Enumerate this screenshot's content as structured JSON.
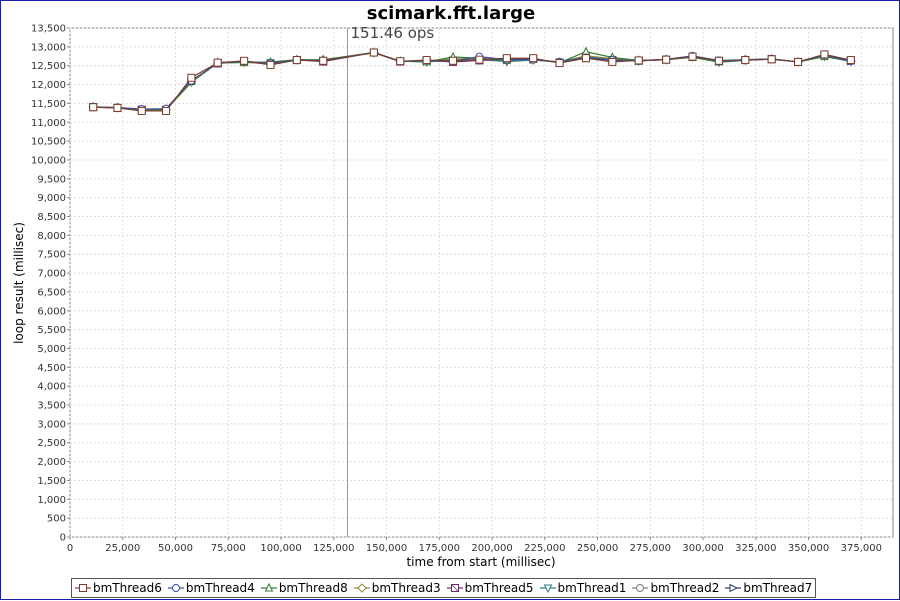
{
  "chart_data": {
    "type": "line",
    "title": "scimark.fft.large",
    "xlabel": "time from start (millisec)",
    "ylabel": "loop result (millisec)",
    "xlim": [
      0,
      390000
    ],
    "ylim": [
      0,
      13500
    ],
    "x_ticks": [
      "0",
      "25,000",
      "50,000",
      "75,000",
      "100,000",
      "125,000",
      "150,000",
      "175,000",
      "200,000",
      "225,000",
      "250,000",
      "275,000",
      "300,000",
      "325,000",
      "350,000",
      "375,000"
    ],
    "y_ticks": [
      "0",
      "500",
      "1,000",
      "1,500",
      "2,000",
      "2,500",
      "3,000",
      "3,500",
      "4,000",
      "4,500",
      "5,000",
      "5,500",
      "6,000",
      "6,500",
      "7,000",
      "7,500",
      "8,000",
      "8,500",
      "9,000",
      "9,500",
      "10,000",
      "10,500",
      "11,000",
      "11,500",
      "12,000",
      "12,500",
      "13,000",
      "13,500"
    ],
    "grid": true,
    "legend_position": "bottom",
    "marker": {
      "x": 131500,
      "label": "151.46 ops"
    },
    "x": [
      11000,
      22500,
      34000,
      45500,
      57500,
      70000,
      82500,
      95000,
      107500,
      120000,
      144000,
      156500,
      169000,
      181500,
      194000,
      207000,
      219500,
      232000,
      244500,
      257000,
      269500,
      282500,
      295000,
      307500,
      320000,
      332500,
      345000,
      357500,
      370000
    ],
    "series": [
      {
        "name": "bmThread6",
        "symbol": "square",
        "color": "#7a3e2e",
        "values": [
          11400,
          11380,
          11300,
          11300,
          12180,
          12580,
          12630,
          12520,
          12650,
          12630,
          12850,
          12620,
          12650,
          12630,
          12660,
          12700,
          12700,
          12570,
          12700,
          12600,
          12640,
          12660,
          12740,
          12630,
          12650,
          12670,
          12600,
          12800,
          12650
        ]
      },
      {
        "name": "bmThread4",
        "symbol": "circle",
        "color": "#3a4fa0",
        "values": [
          11410,
          11390,
          11350,
          11360,
          12100,
          12570,
          12620,
          12560,
          12650,
          12630,
          12850,
          12610,
          12640,
          12620,
          12740,
          12660,
          12660,
          12600,
          12720,
          12650,
          12630,
          12670,
          12760,
          12640,
          12660,
          12680,
          12600,
          12780,
          12620
        ]
      },
      {
        "name": "bmThread8",
        "symbol": "triangle-up",
        "color": "#2e7a2e",
        "values": [
          11400,
          11390,
          11340,
          11340,
          12080,
          12590,
          12580,
          12600,
          12660,
          12660,
          12850,
          12620,
          12600,
          12730,
          12700,
          12640,
          12670,
          12580,
          12870,
          12720,
          12640,
          12670,
          12720,
          12600,
          12660,
          12680,
          12600,
          12740,
          12630
        ]
      },
      {
        "name": "bmThread3",
        "symbol": "diamond",
        "color": "#8a8a3a",
        "values": [
          11410,
          11380,
          11330,
          11330,
          12060,
          12570,
          12590,
          12570,
          12650,
          12650,
          12840,
          12610,
          12620,
          12680,
          12690,
          12650,
          12660,
          12600,
          12760,
          12690,
          12640,
          12660,
          12730,
          12620,
          12660,
          12680,
          12600,
          12760,
          12620
        ]
      },
      {
        "name": "bmThread5",
        "symbol": "square-x",
        "color": "#6a2a6a",
        "values": [
          11400,
          11380,
          11330,
          11320,
          12100,
          12560,
          12600,
          12540,
          12650,
          12610,
          12850,
          12610,
          12640,
          12600,
          12640,
          12680,
          12680,
          12580,
          12700,
          12650,
          12630,
          12660,
          12730,
          12630,
          12650,
          12670,
          12600,
          12790,
          12640
        ]
      },
      {
        "name": "bmThread1",
        "symbol": "triangle-down",
        "color": "#2a7a8a",
        "values": [
          11410,
          11390,
          11340,
          11340,
          12060,
          12570,
          12590,
          12580,
          12660,
          12640,
          12850,
          12620,
          12600,
          12650,
          12660,
          12610,
          12650,
          12590,
          12760,
          12650,
          12630,
          12660,
          12740,
          12590,
          12640,
          12680,
          12600,
          12750,
          12610
        ]
      },
      {
        "name": "bmThread2",
        "symbol": "circle",
        "color": "#7a7a7a",
        "values": [
          11400,
          11380,
          11340,
          11330,
          12080,
          12570,
          12600,
          12560,
          12650,
          12630,
          12850,
          12610,
          12630,
          12620,
          12670,
          12660,
          12660,
          12600,
          12730,
          12660,
          12630,
          12660,
          12740,
          12630,
          12650,
          12680,
          12600,
          12770,
          12630
        ]
      },
      {
        "name": "bmThread7",
        "symbol": "triangle-right",
        "color": "#2a3a5a",
        "values": [
          11400,
          11380,
          11340,
          11330,
          12070,
          12570,
          12600,
          12560,
          12650,
          12630,
          12850,
          12610,
          12620,
          12620,
          12660,
          12650,
          12660,
          12590,
          12720,
          12640,
          12630,
          12660,
          12730,
          12620,
          12650,
          12680,
          12600,
          12760,
          12620
        ]
      }
    ]
  }
}
